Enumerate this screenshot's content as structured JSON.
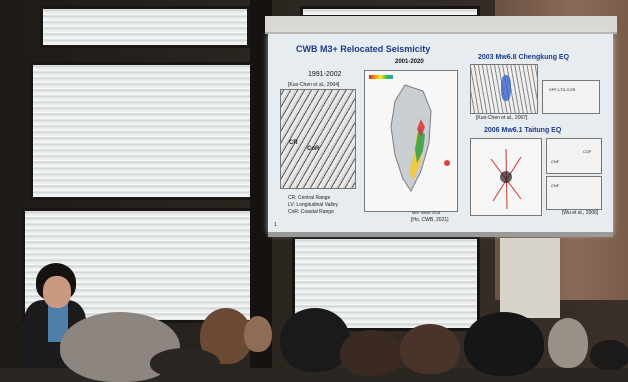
{
  "slide": {
    "title": "CWB M3+ Relocated Seismicity",
    "subtitle_years": "2001-2020",
    "left_panel": {
      "years": "1991-2002",
      "citation": "[Kuo-Chen et al., 2004]",
      "legend": [
        "CR: Central Range",
        "LV: Longitudinal Valley",
        "CoR: Coastal Range"
      ],
      "labels": [
        "CR",
        "CoR"
      ]
    },
    "center_panel": {
      "legend": "M6+ since 2018",
      "citation": "[Ho, CWB, 2021]"
    },
    "right_top": {
      "title": "2003 Mw6.8 Chengkung EQ",
      "citation": "[Kuo-Chen et al., 2007]",
      "label": "VPF-LTS-COR"
    },
    "right_bottom": {
      "title": "2006 Mw6.1 Taitung EQ",
      "labels": [
        "CNF",
        "COF",
        "CNF"
      ],
      "citation": "[Wu et al., 2006]"
    },
    "page_number": "1"
  },
  "colors": {
    "title_blue": "#1d3a8a",
    "slide_bg": "#e7ecf0",
    "scarf": "#4d7fa8"
  }
}
